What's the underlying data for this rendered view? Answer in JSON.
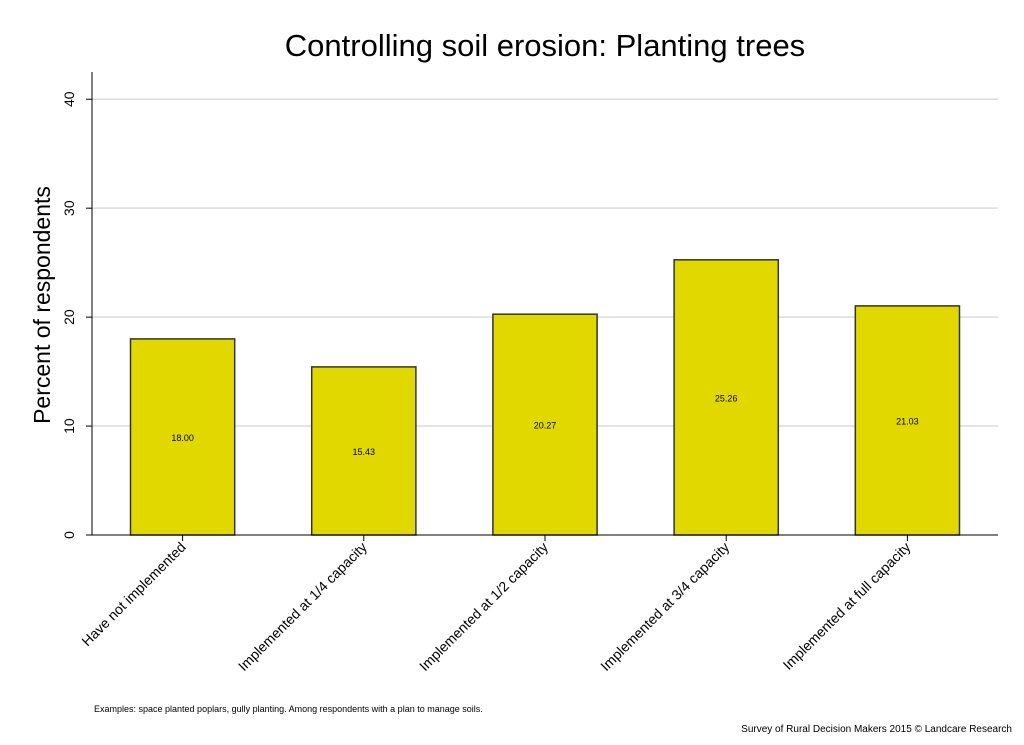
{
  "chart_data": {
    "type": "bar",
    "title": "Controlling soil erosion: Planting trees",
    "ylabel": "Percent of respondents",
    "xlabel": "",
    "ylim": [
      0,
      42.5
    ],
    "yticks": [
      0,
      10,
      20,
      30,
      40
    ],
    "grid": true,
    "categories": [
      "Have not implemented",
      "Implemented at 1/4 capacity",
      "Implemented at 1/2 capacity",
      "Implemented at 3/4 capacity",
      "Implemented at full capacity"
    ],
    "values": [
      18.0,
      15.43,
      20.27,
      25.26,
      21.03
    ],
    "value_labels": [
      "18.00",
      "15.43",
      "20.27",
      "25.26",
      "21.03"
    ],
    "bar_color": "#e1d800",
    "bar_edge_color": "#333333"
  },
  "footer": {
    "note": "Examples: space planted poplars, gully planting. Among respondents with a plan to manage soils.",
    "source": "Survey of Rural Decision Makers 2015 © Landcare Research"
  }
}
